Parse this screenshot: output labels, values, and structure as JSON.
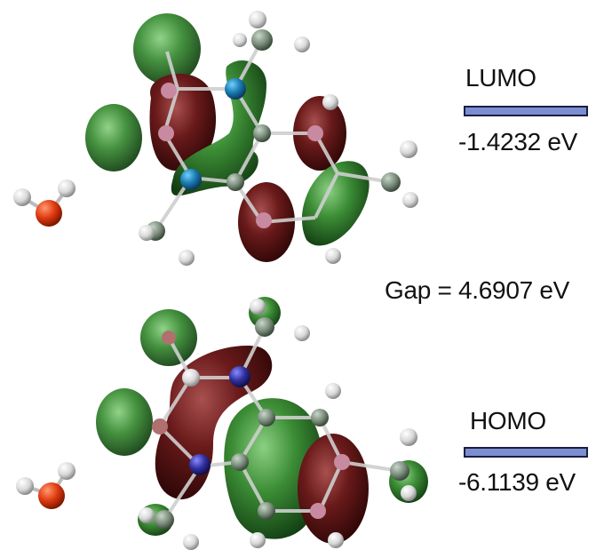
{
  "lumo": {
    "title": "LUMO",
    "energy": "-1.4232 eV"
  },
  "gap": {
    "text": "Gap = 4.6907 eV"
  },
  "homo": {
    "title": "HOMO",
    "energy": "-6.1139 eV"
  },
  "colors": {
    "green_lobe": "#3a8a36",
    "red_lobe": "#6e1a1a",
    "level_bar": "#7b8fd0",
    "oxygen": "#e03a10",
    "hydrogen": "#f0f0f0",
    "nitrogen_lumo": "#1a7ab0",
    "nitrogen_homo": "#3030a0"
  }
}
